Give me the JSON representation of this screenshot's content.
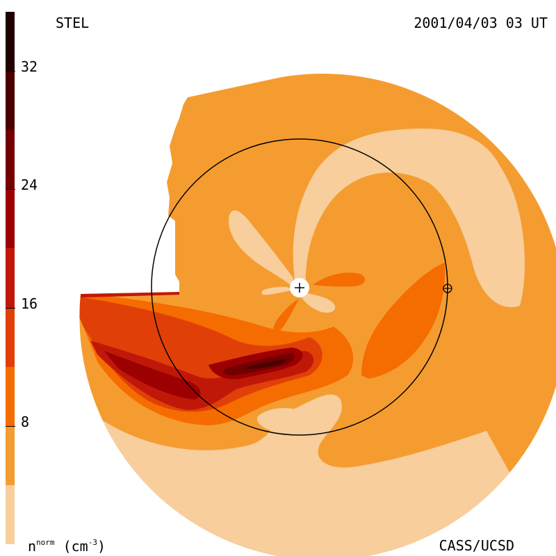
{
  "header": {
    "instrument": "STEL",
    "timestamp": "2001/04/03 03 UT"
  },
  "footer": {
    "quantity": "n",
    "quantity_sup": "norm",
    "unit": "(cm",
    "unit_sup": "-3",
    "unit_close": ")",
    "credit": "CASS/UCSD"
  },
  "chart_data": {
    "type": "heatmap",
    "title": "",
    "colorbar": {
      "min": 0,
      "max": 36,
      "ticks": [
        {
          "value": 8,
          "label": "8"
        },
        {
          "value": 16,
          "label": "16"
        },
        {
          "value": 24,
          "label": "24"
        },
        {
          "value": 32,
          "label": "32"
        }
      ],
      "levels": [
        {
          "from": 0,
          "to": 4,
          "color": "#f7ce9c"
        },
        {
          "from": 4,
          "to": 8,
          "color": "#f59c31"
        },
        {
          "from": 8,
          "to": 12,
          "color": "#f56c00"
        },
        {
          "from": 12,
          "to": 16,
          "color": "#e04008"
        },
        {
          "from": 16,
          "to": 20,
          "color": "#c01808"
        },
        {
          "from": 20,
          "to": 24,
          "color": "#9c0000"
        },
        {
          "from": 24,
          "to": 28,
          "color": "#730000"
        },
        {
          "from": 28,
          "to": 32,
          "color": "#4a0000"
        },
        {
          "from": 32,
          "to": 36,
          "color": "#210000"
        }
      ]
    },
    "markers": [
      {
        "name": "sun",
        "symbol": "+"
      },
      {
        "name": "earth",
        "symbol": "⊕"
      }
    ],
    "reference_circle": "1 AU"
  }
}
